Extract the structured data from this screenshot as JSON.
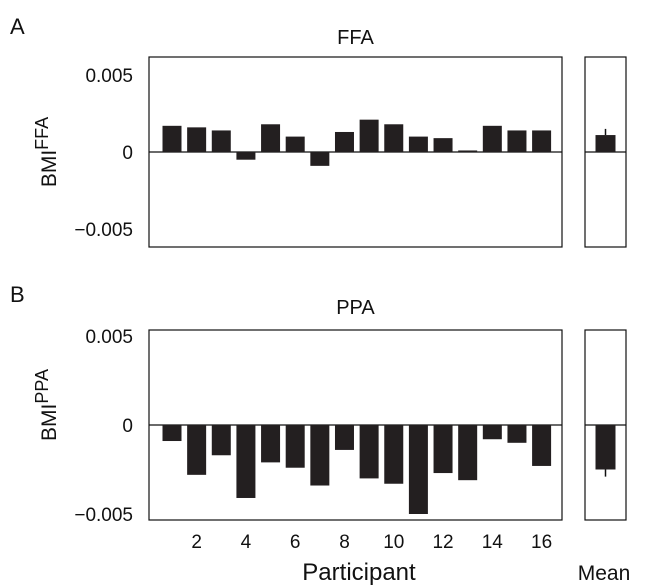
{
  "x_axis": {
    "label": "Participant",
    "ticks": [
      "2",
      "4",
      "6",
      "8",
      "10",
      "12",
      "14",
      "16"
    ],
    "tick_values": [
      2,
      4,
      6,
      8,
      10,
      12,
      14,
      16
    ]
  },
  "mean_label": "Mean",
  "chart_data": [
    {
      "type": "bar",
      "panel": "A",
      "title": "FFA",
      "ylabel": "BMI",
      "ylabel_superscript": "FFA",
      "ylim": [
        -0.006,
        0.006
      ],
      "yticks": [
        0.005,
        0,
        -0.005
      ],
      "ytick_labels": [
        "0.005",
        "0",
        "−0.005"
      ],
      "categories": [
        1,
        2,
        3,
        4,
        5,
        6,
        7,
        8,
        9,
        10,
        11,
        12,
        13,
        14,
        15,
        16
      ],
      "values": [
        0.0017,
        0.0016,
        0.0014,
        -0.0005,
        0.0018,
        0.001,
        -0.0009,
        0.0013,
        0.0021,
        0.0018,
        0.001,
        0.0009,
        0.0001,
        0.0017,
        0.0014,
        0.0014
      ],
      "mean": 0.0011,
      "mean_error": 0.0004
    },
    {
      "type": "bar",
      "panel": "B",
      "title": "PPA",
      "ylabel": "BMI",
      "ylabel_superscript": "PPA",
      "ylim": [
        -0.006,
        0.006
      ],
      "yticks": [
        0.005,
        0,
        -0.005
      ],
      "ytick_labels": [
        "0.005",
        "0",
        "−0.005"
      ],
      "categories": [
        1,
        2,
        3,
        4,
        5,
        6,
        7,
        8,
        9,
        10,
        11,
        12,
        13,
        14,
        15,
        16
      ],
      "values": [
        -0.0009,
        -0.0028,
        -0.0017,
        -0.0041,
        -0.0021,
        -0.0024,
        -0.0034,
        -0.0014,
        -0.003,
        -0.0033,
        -0.005,
        -0.0027,
        -0.0031,
        -0.0008,
        -0.001,
        -0.0023
      ],
      "mean": -0.0025,
      "mean_error": 0.0004
    }
  ]
}
